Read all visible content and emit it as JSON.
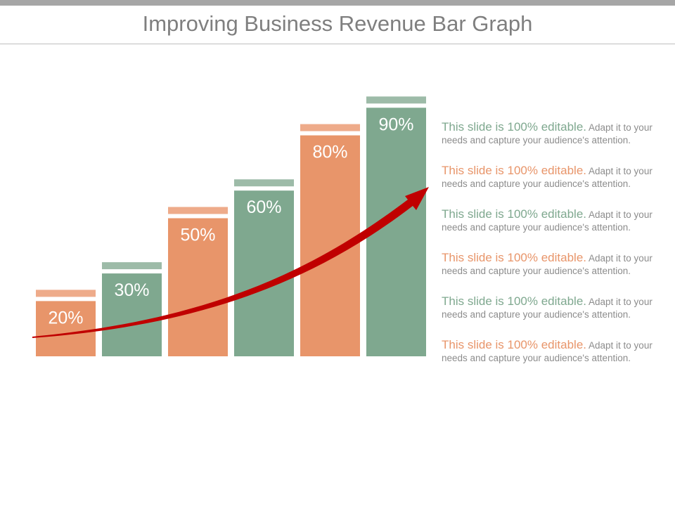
{
  "title": "Improving Business Revenue Bar Graph",
  "colors": {
    "orange": "#e8956a",
    "orange_light": "#eeab8a",
    "green": "#7fa88f",
    "green_light": "#9dbba8",
    "arrow": "#c00000",
    "title_text": "#7f7f7f",
    "body_text": "#8c8c8c"
  },
  "chart_data": {
    "type": "bar",
    "categories": [
      "",
      "",
      "",
      "",
      "",
      ""
    ],
    "values": [
      20,
      30,
      50,
      60,
      80,
      90
    ],
    "labels": [
      "20%",
      "30%",
      "50%",
      "60%",
      "80%",
      "90%"
    ],
    "bar_colors": [
      "orange",
      "green",
      "orange",
      "green",
      "orange",
      "green"
    ],
    "ylim": [
      0,
      100
    ],
    "trend_arrow": true,
    "title": "",
    "xlabel": "",
    "ylabel": ""
  },
  "notes": [
    {
      "lead": "This slide is 100% editable.",
      "body": " Adapt it to your needs and capture your audience's attention.",
      "color": "green"
    },
    {
      "lead": "This slide is 100% editable.",
      "body": " Adapt it to your needs and capture your audience's attention.",
      "color": "orange"
    },
    {
      "lead": "This slide is 100% editable.",
      "body": " Adapt it to your needs and capture your audience's attention.",
      "color": "green"
    },
    {
      "lead": "This slide is 100% editable.",
      "body": " Adapt it to your needs and capture your audience's attention.",
      "color": "orange"
    },
    {
      "lead": "This slide is 100% editable.",
      "body": " Adapt it to your needs and capture your audience's attention.",
      "color": "green"
    },
    {
      "lead": "This slide is 100% editable.",
      "body": " Adapt it to your needs and capture your audience's attention.",
      "color": "orange"
    }
  ]
}
